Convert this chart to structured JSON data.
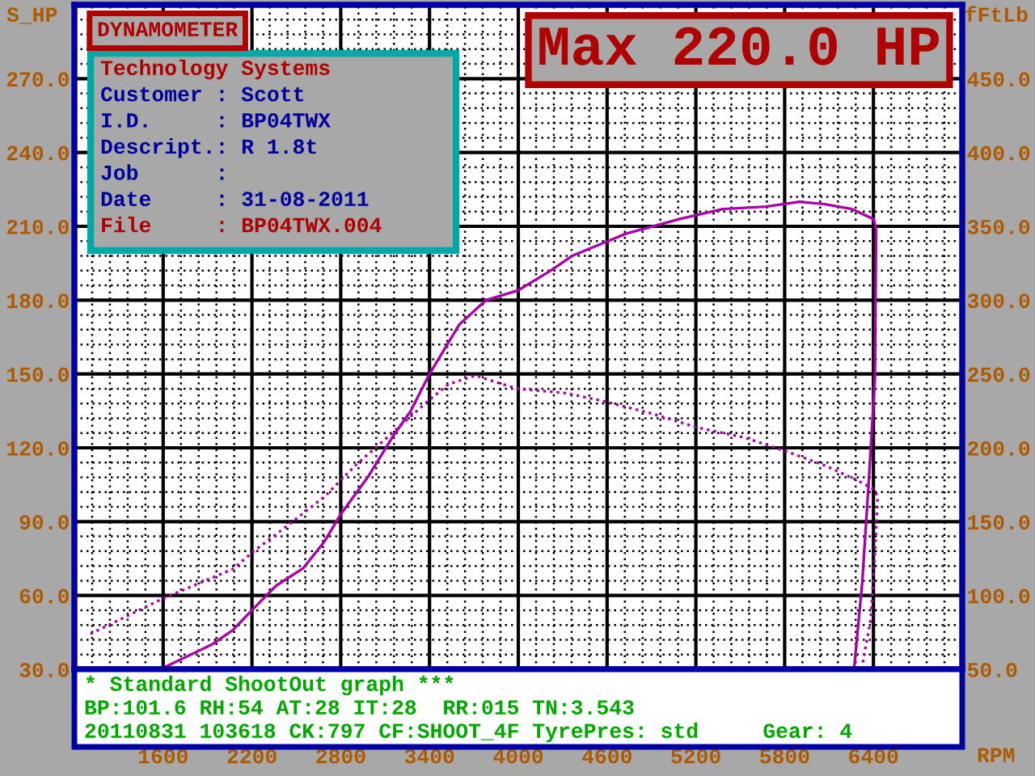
{
  "chart_data": {
    "type": "line",
    "title": "Max 220.0 HP",
    "subtitle": "DYNAMOMETER",
    "xlabel": "RPM",
    "ylabel": "S_HP",
    "y2label": "fFtLb",
    "xlim": [
      1000,
      7000
    ],
    "xticks": [
      1600,
      2200,
      2800,
      3400,
      4000,
      4600,
      5200,
      5800,
      6400
    ],
    "ylim": [
      30,
      300
    ],
    "yticks": [
      {
        "value": 30,
        "label": "30.0"
      },
      {
        "value": 60,
        "label": "60.0"
      },
      {
        "value": 90,
        "label": "90.0"
      },
      {
        "value": 120,
        "label": "120.0"
      },
      {
        "value": 150,
        "label": "150.0"
      },
      {
        "value": 180,
        "label": "180.0"
      },
      {
        "value": 210,
        "label": "210.0"
      },
      {
        "value": 240,
        "label": "240.0"
      },
      {
        "value": 270,
        "label": "270.0"
      }
    ],
    "y2lim": [
      50,
      500
    ],
    "y2ticks": [
      {
        "value": 50,
        "label": "50.0"
      },
      {
        "value": 100,
        "label": "100.0"
      },
      {
        "value": 150,
        "label": "150.0"
      },
      {
        "value": 200,
        "label": "200.0"
      },
      {
        "value": 250,
        "label": "250.0"
      },
      {
        "value": 300,
        "label": "300.0"
      },
      {
        "value": 350,
        "label": "350.0"
      },
      {
        "value": 400,
        "label": "400.0"
      },
      {
        "value": 450,
        "label": "450.0"
      }
    ],
    "grid": true,
    "series": [
      {
        "color": "#aa00aa",
        "line_style": "solid",
        "x": [
          1580,
          1927,
          2072,
          2200,
          2364,
          2545,
          2691,
          2800,
          2982,
          3146,
          3273,
          3400,
          3600,
          3782,
          4000,
          4218,
          4364,
          4727,
          5091,
          5382,
          5673,
          5900,
          6073,
          6255,
          6400,
          6418,
          6410,
          6367,
          6324,
          6269
        ],
        "values": [
          30,
          40,
          46,
          54,
          64,
          71,
          82,
          93,
          108,
          124,
          135,
          150,
          170,
          180,
          184,
          192,
          198,
          207,
          213,
          217,
          218,
          220,
          219,
          217,
          213,
          209,
          148,
          105,
          65,
          30
        ]
      },
      {
        "color": "#aa00aa",
        "line_style": "dotted",
        "axis": "y2",
        "x": [
          1109,
          1600,
          2073,
          2200,
          2436,
          2691,
          2909,
          3091,
          3382,
          3527,
          3709,
          3927,
          4000,
          4327,
          4600,
          4909,
          5200,
          5527,
          5800,
          6073,
          6291,
          6400,
          6429,
          6411,
          6382,
          6320
        ],
        "values": [
          74,
          98,
          118,
          129,
          147,
          167,
          189,
          205,
          231,
          243,
          249,
          242,
          240,
          237,
          231,
          223,
          214,
          207,
          198,
          188,
          178,
          172,
          167,
          131,
          84,
          50
        ]
      }
    ],
    "annotations": [
      "Technology Systems",
      "Customer : Scott",
      "I.D.     : BP04TWX",
      "Descript.: R 1.8t",
      "Job      :",
      "Date     : 31-08-2011",
      "File     : BP04TWX.004",
      "* Standard ShootOut graph ***",
      "BP:101.6 RH:54 AT:28 IT:28  RR:015 TN:3.543",
      "20110831 103618 CK:797 CF:SHOOT_4F TyrePres: std     Gear: 4"
    ]
  }
}
